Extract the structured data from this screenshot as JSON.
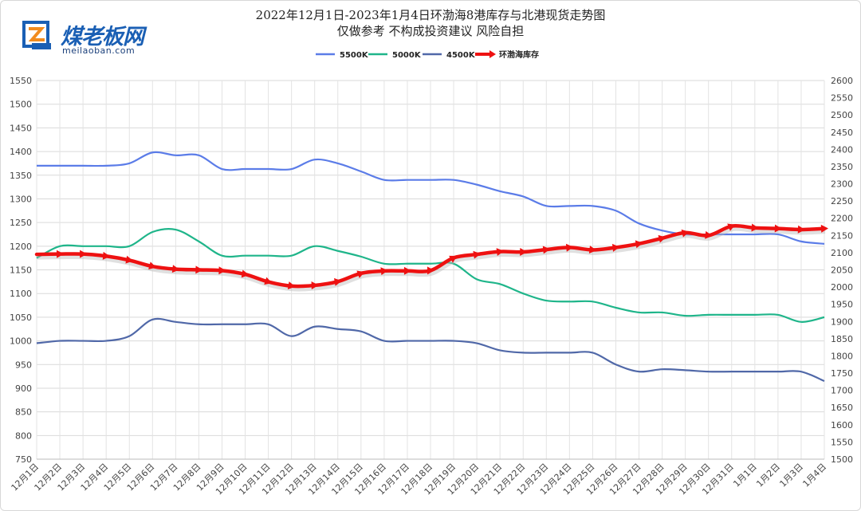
{
  "brand": {
    "name": "煤老板网",
    "url": "meilaoban.com"
  },
  "chart_data": {
    "type": "line",
    "title": "2022年12月1日-2023年1月4日环渤海8港库存与北港现货走势图",
    "subtitle": "仅做参考 不构成投资建议 风险自担",
    "categories": [
      "12月1日",
      "12月2日",
      "12月3日",
      "12月4日",
      "12月5日",
      "12月6日",
      "12月7日",
      "12月8日",
      "12月9日",
      "12月10日",
      "12月11日",
      "12月12日",
      "12月13日",
      "12月14日",
      "12月15日",
      "12月16日",
      "12月17日",
      "12月18日",
      "12月19日",
      "12月20日",
      "12月21日",
      "12月22日",
      "12月23日",
      "12月24日",
      "12月25日",
      "12月26日",
      "12月27日",
      "12月28日",
      "12月29日",
      "12月30日",
      "12月31日",
      "1月1日",
      "1月2日",
      "1月3日",
      "1月4日"
    ],
    "left_axis": {
      "ylim": [
        750,
        1550
      ],
      "ticks": [
        "750",
        "800",
        "850",
        "900",
        "950",
        "1000",
        "1050",
        "1100",
        "1150",
        "1200",
        "1250",
        "1300",
        "1350",
        "1400",
        "1450",
        "1500",
        "1550"
      ]
    },
    "right_axis": {
      "ylim": [
        1500,
        2600
      ],
      "ticks": [
        "1500",
        "1550",
        "1600",
        "1650",
        "1700",
        "1750",
        "1800",
        "1850",
        "1900",
        "1950",
        "2000",
        "2050",
        "2100",
        "2150",
        "2200",
        "2250",
        "2300",
        "2350",
        "2400",
        "2450",
        "2500",
        "2550",
        "2600"
      ]
    },
    "grid": true,
    "legend_position": "top-center",
    "series": [
      {
        "name": "5500K",
        "axis": "left",
        "color": "#5b7ce8",
        "values": [
          1370,
          1370,
          1370,
          1370,
          1375,
          1398,
          1392,
          1392,
          1363,
          1363,
          1363,
          1363,
          1383,
          1375,
          1358,
          1340,
          1340,
          1340,
          1340,
          1330,
          1316,
          1305,
          1285,
          1285,
          1285,
          1275,
          1248,
          1233,
          1225,
          1225,
          1225,
          1225,
          1225,
          1210,
          1205
        ]
      },
      {
        "name": "5000K",
        "axis": "left",
        "color": "#1fb58a",
        "values": [
          1175,
          1200,
          1200,
          1200,
          1200,
          1230,
          1235,
          1210,
          1180,
          1180,
          1180,
          1180,
          1200,
          1190,
          1178,
          1163,
          1163,
          1163,
          1163,
          1130,
          1120,
          1100,
          1085,
          1083,
          1083,
          1070,
          1060,
          1060,
          1053,
          1055,
          1055,
          1055,
          1055,
          1040,
          1050
        ]
      },
      {
        "name": "4500K",
        "axis": "left",
        "color": "#5068a8",
        "values": [
          995,
          1000,
          1000,
          1000,
          1010,
          1045,
          1040,
          1035,
          1035,
          1035,
          1035,
          1010,
          1030,
          1025,
          1020,
          1000,
          1000,
          1000,
          1000,
          995,
          980,
          975,
          975,
          975,
          975,
          950,
          935,
          940,
          938,
          935,
          935,
          935,
          935,
          935,
          915
        ]
      },
      {
        "name": "环渤海库存",
        "axis": "right",
        "color": "#ee1111",
        "values": [
          2095,
          2096,
          2096,
          2090,
          2078,
          2060,
          2052,
          2050,
          2048,
          2037,
          2015,
          2003,
          2005,
          2016,
          2040,
          2047,
          2047,
          2048,
          2085,
          2095,
          2103,
          2102,
          2109,
          2115,
          2108,
          2115,
          2126,
          2142,
          2158,
          2150,
          2177,
          2172,
          2170,
          2167,
          2170
        ]
      }
    ]
  }
}
